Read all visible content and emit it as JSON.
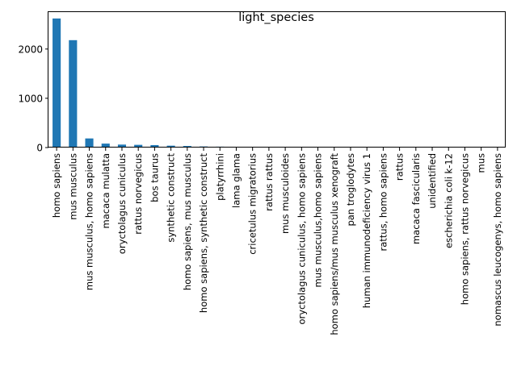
{
  "chart_data": {
    "type": "bar",
    "title": "light_species",
    "xlabel": "",
    "ylabel": "",
    "ylim": [
      0,
      2750
    ],
    "yticks": [
      0,
      1000,
      2000
    ],
    "grid": false,
    "legend": "none",
    "bar_color": "#1f77b4",
    "categories": [
      "homo sapiens",
      "mus musculus",
      "mus musculus, homo sapiens",
      "macaca mulatta",
      "oryctolagus cuniculus",
      "rattus norvegicus",
      "bos taurus",
      "synthetic construct",
      "homo sapiens, mus musculus",
      "homo sapiens, synthetic construct",
      "platyrrhini",
      "lama glama",
      "cricetulus migratorius",
      "rattus rattus",
      "mus musculoides",
      "oryctolagus cuniculus, homo sapiens",
      "mus musculus,homo sapiens",
      "homo sapiens/mus musculus xenograft",
      "pan troglodytes",
      "human immunodeficiency virus 1",
      "rattus, homo sapiens",
      "rattus",
      "macaca fascicularis",
      "unidentified",
      "escherichia coli k-12",
      "homo sapiens, rattus norvegicus",
      "mus",
      "nomascus leucogenys, homo sapiens"
    ],
    "values": [
      2620,
      2180,
      185,
      80,
      60,
      55,
      50,
      38,
      32,
      22,
      18,
      15,
      13,
      11,
      9,
      7,
      5,
      4,
      3,
      3,
      2,
      2,
      2,
      1,
      1,
      1,
      1,
      1
    ]
  }
}
